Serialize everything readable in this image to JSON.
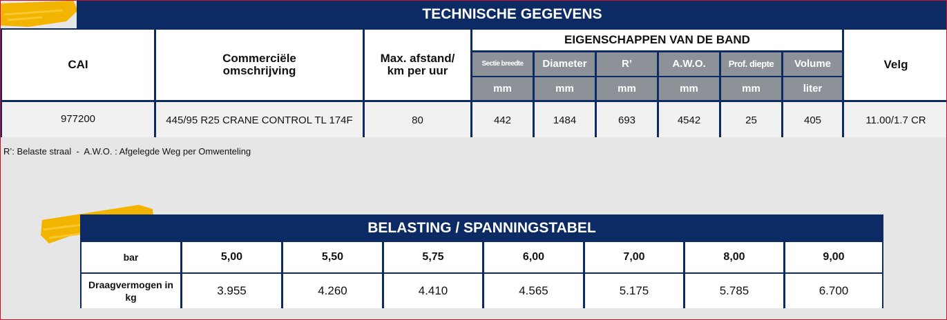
{
  "technical": {
    "title": "TECHNISCHE GEGEVENS",
    "columns": [
      "CAI",
      "Commerciële omschrijving",
      "Max. afstand/ km per uur"
    ],
    "group_header": "EIGENSCHAPPEN VAN DE BAND",
    "properties": [
      {
        "label": "Sectie breedte",
        "unit": "mm"
      },
      {
        "label": "Diameter",
        "unit": "mm"
      },
      {
        "label": "R’",
        "unit": "mm"
      },
      {
        "label": "A.W.O.",
        "unit": "mm"
      },
      {
        "label": "Prof. diepte",
        "unit": "mm"
      },
      {
        "label": "Volume",
        "unit": "liter"
      }
    ],
    "last_column": "Velg",
    "row": [
      "977200",
      "445/95 R25 CRANE CONTROL TL 174F",
      "80",
      "442",
      "1484",
      "693",
      "4542",
      "25",
      "405",
      "11.00/1.7 CR"
    ]
  },
  "note": "R’: Belaste straal  -  A.W.O. : Afgelegde Weg per Omwenteling",
  "load_table": {
    "title": "BELASTING / SPANNINGSTABEL",
    "row_headers": [
      "bar",
      "Draagvermogen in kg"
    ],
    "pressures": [
      "5,00",
      "5,50",
      "5,75",
      "6,00",
      "7,00",
      "8,00",
      "9,00"
    ],
    "loads": [
      "3.955",
      "4.260",
      "4.410",
      "4.565",
      "5.175",
      "5.785",
      "6.700"
    ]
  }
}
